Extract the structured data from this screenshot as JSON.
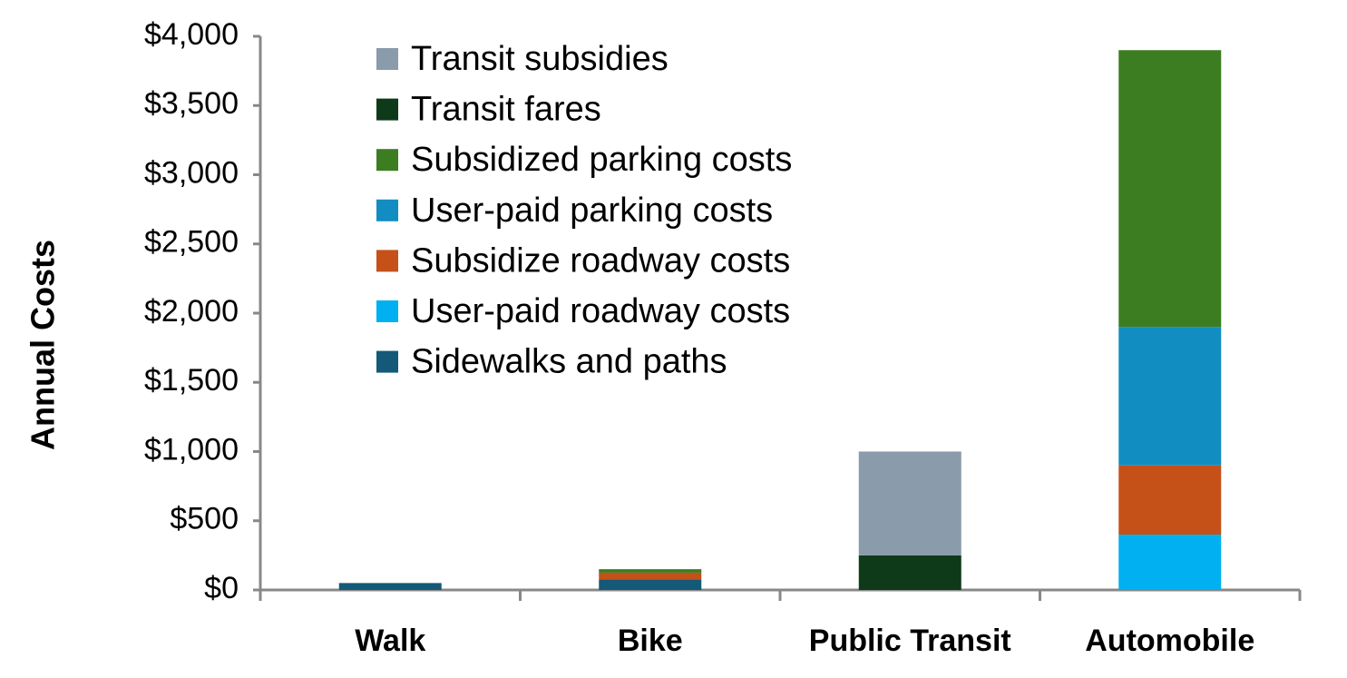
{
  "chart_data": {
    "type": "stacked-bar",
    "y_label": "Annual Costs",
    "categories": [
      "Walk",
      "Bike",
      "Public Transit",
      "Automobile"
    ],
    "series": [
      {
        "name": "Sidewalks and paths",
        "color": "#145a78",
        "values": [
          50,
          75,
          null,
          null
        ]
      },
      {
        "name": "User-paid roadway costs",
        "color": "#00b0f0",
        "values": [
          null,
          null,
          null,
          400
        ]
      },
      {
        "name": "Subsidize roadway costs",
        "color": "#c55119",
        "values": [
          null,
          50,
          null,
          500
        ]
      },
      {
        "name": "User-paid parking costs",
        "color": "#118dc2",
        "values": [
          null,
          null,
          null,
          1000
        ]
      },
      {
        "name": "Subsidized parking costs",
        "color": "#3c7d22",
        "values": [
          null,
          25,
          null,
          2000
        ]
      },
      {
        "name": "Transit fares",
        "color": "#0f3a1a",
        "values": [
          null,
          null,
          250,
          null
        ]
      },
      {
        "name": "Transit subsidies",
        "color": "#8a9bab",
        "values": [
          null,
          null,
          750,
          null
        ]
      }
    ],
    "ylim": [
      0,
      4000
    ],
    "yticks": [
      {
        "value": 0,
        "label": "$0"
      },
      {
        "value": 500,
        "label": "$500"
      },
      {
        "value": 1000,
        "label": "$1,000"
      },
      {
        "value": 1500,
        "label": "$1,500"
      },
      {
        "value": 2000,
        "label": "$2,000"
      },
      {
        "value": 2500,
        "label": "$2,500"
      },
      {
        "value": 3000,
        "label": "$3,000"
      },
      {
        "value": 3500,
        "label": "$3,500"
      },
      {
        "value": 4000,
        "label": "$4,000"
      }
    ],
    "grid": false,
    "legend": "top-left"
  }
}
